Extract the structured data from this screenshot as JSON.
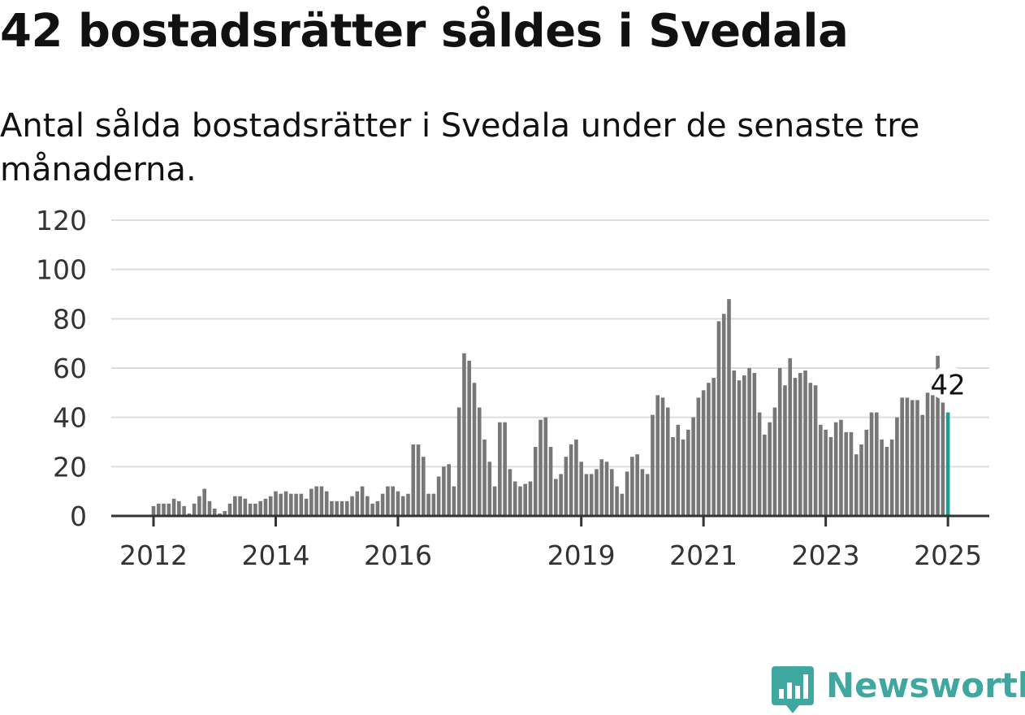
{
  "title": "42 bostadsrätter såldes i Svedala",
  "subtitle": "Antal sålda bostadsrätter i Svedala under de senaste tre månaderna.",
  "brand": {
    "name": "Newsworthy",
    "color": "#3ea79f",
    "icon": "bar-chart-badge-icon"
  },
  "colors": {
    "bars": "#777777",
    "highlight": "#1b9e95"
  },
  "chart_data": {
    "type": "bar",
    "title": "42 bostadsrätter såldes i Svedala",
    "subtitle": "Antal sålda bostadsrätter i Svedala under de senaste tre månaderna.",
    "xlabel": "",
    "ylabel": "",
    "ylim": [
      0,
      120
    ],
    "yticks": [
      "0",
      "20",
      "40",
      "60",
      "80",
      "100",
      "120"
    ],
    "xticks": [
      {
        "label": "2012",
        "index": 0
      },
      {
        "label": "2014",
        "index": 24
      },
      {
        "label": "2016",
        "index": 48
      },
      {
        "label": "2019",
        "index": 84
      },
      {
        "label": "2021",
        "index": 108
      },
      {
        "label": "2023",
        "index": 132
      },
      {
        "label": "2025",
        "index": 156
      }
    ],
    "grid": true,
    "legend": "none",
    "start_period": "2012-01",
    "values": [
      4,
      5,
      5,
      5,
      7,
      6,
      4,
      1,
      5,
      8,
      11,
      6,
      3,
      1,
      2,
      5,
      8,
      8,
      7,
      5,
      5,
      6,
      7,
      8,
      10,
      9,
      10,
      9,
      9,
      9,
      7,
      11,
      12,
      12,
      10,
      6,
      6,
      6,
      6,
      8,
      10,
      12,
      8,
      5,
      6,
      9,
      12,
      12,
      10,
      8,
      9,
      29,
      29,
      24,
      9,
      9,
      16,
      20,
      21,
      12,
      44,
      66,
      63,
      54,
      44,
      31,
      22,
      12,
      38,
      38,
      19,
      14,
      12,
      13,
      14,
      28,
      39,
      40,
      28,
      15,
      17,
      24,
      29,
      31,
      22,
      17,
      17,
      19,
      23,
      22,
      19,
      12,
      9,
      18,
      24,
      25,
      19,
      17,
      41,
      49,
      48,
      44,
      32,
      37,
      31,
      35,
      40,
      48,
      51,
      54,
      56,
      79,
      82,
      88,
      59,
      55,
      57,
      60,
      58,
      42,
      33,
      38,
      44,
      60,
      53,
      64,
      56,
      58,
      59,
      54,
      53,
      37,
      35,
      32,
      38,
      39,
      34,
      34,
      25,
      29,
      35,
      42,
      42,
      31,
      28,
      31,
      40,
      48,
      48,
      47,
      47,
      41,
      50,
      49,
      65,
      46,
      42
    ],
    "highlight": {
      "index": 156,
      "value": 42,
      "label": "42"
    }
  }
}
